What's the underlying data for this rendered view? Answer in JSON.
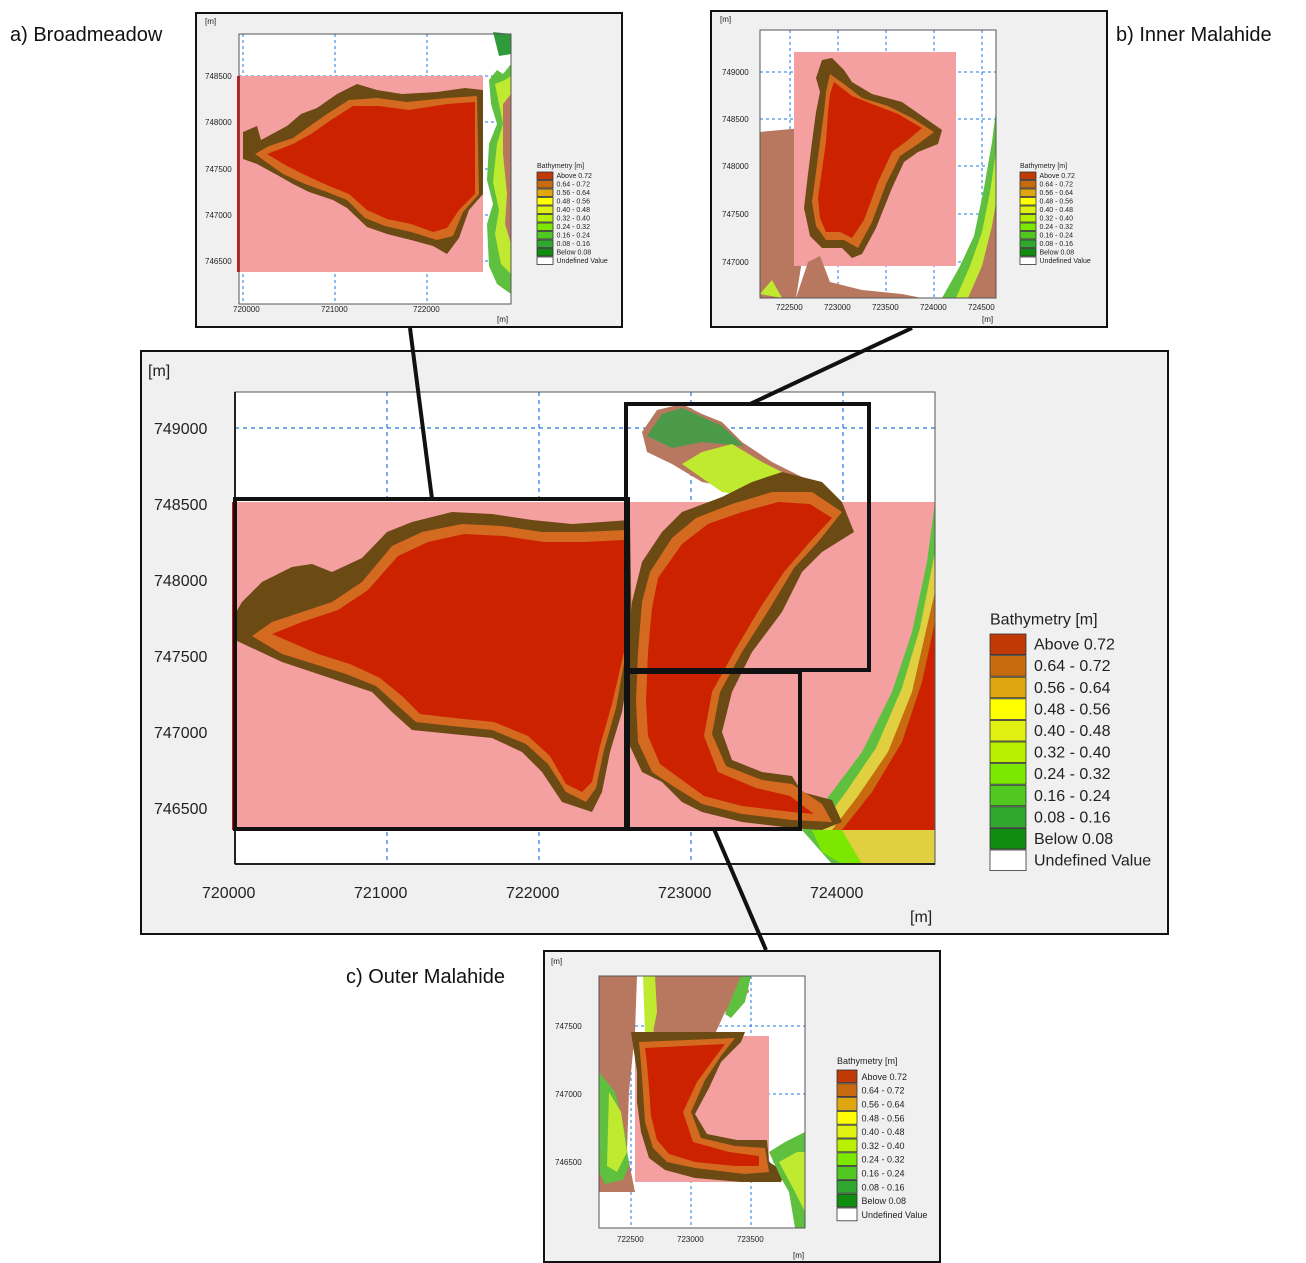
{
  "captions": {
    "a": "a) Broadmeadow",
    "b": "b) Inner Malahide",
    "c": "c) Outer Malahide"
  },
  "colors": {
    "panel_bg": "#f0f0f0",
    "plot_bg": "#ffffff",
    "grid": "#1e78e6",
    "pink_region": "#f4a0a0",
    "dark_red": "#cc2200",
    "land": "#b87860",
    "green_land": "#4a9a4a",
    "frame": "#111111"
  },
  "legend": {
    "title": "Bathymetry [m]",
    "classes": [
      {
        "label": "Above 0.72",
        "color": "#c03a08"
      },
      {
        "label": "0.64 - 0.72",
        "color": "#c86a10"
      },
      {
        "label": "0.56 - 0.64",
        "color": "#e0a610"
      },
      {
        "label": "0.48 - 0.56",
        "color": "#ffff00"
      },
      {
        "label": "0.40 - 0.48",
        "color": "#e0f010"
      },
      {
        "label": "0.32 - 0.40",
        "color": "#b8f000"
      },
      {
        "label": "0.24 - 0.32",
        "color": "#7ce800"
      },
      {
        "label": "0.16 - 0.24",
        "color": "#50c820"
      },
      {
        "label": "0.08 - 0.16",
        "color": "#30a830"
      },
      {
        "label": "Below 0.08",
        "color": "#108c10"
      },
      {
        "label": "Undefined Value",
        "color": "#ffffff"
      }
    ]
  },
  "main_map": {
    "unit_y": "[m]",
    "unit_x": "[m]",
    "x_ticks": [
      "720000",
      "721000",
      "722000",
      "723000",
      "724000"
    ],
    "y_ticks": [
      "749000",
      "748500",
      "748000",
      "747500",
      "747000",
      "746500"
    ],
    "x_range": [
      720000,
      724650
    ],
    "y_range": [
      746150,
      749250
    ]
  },
  "inset_a": {
    "unit_y": "[m]",
    "unit_x": "[m]",
    "x_ticks": [
      "720000",
      "721000",
      "722000"
    ],
    "y_ticks": [
      "748500",
      "748000",
      "747500",
      "747000",
      "746500"
    ]
  },
  "inset_b": {
    "unit_y": "[m]",
    "unit_x": "[m]",
    "x_ticks": [
      "722500",
      "723000",
      "723500",
      "724000",
      "724500"
    ],
    "y_ticks": [
      "749000",
      "748500",
      "748000",
      "747500",
      "747000"
    ]
  },
  "inset_c": {
    "unit_y": "[m]",
    "unit_x": "[m]",
    "x_ticks": [
      "722500",
      "723000",
      "723500"
    ],
    "y_ticks": [
      "747500",
      "747000",
      "746500"
    ]
  }
}
